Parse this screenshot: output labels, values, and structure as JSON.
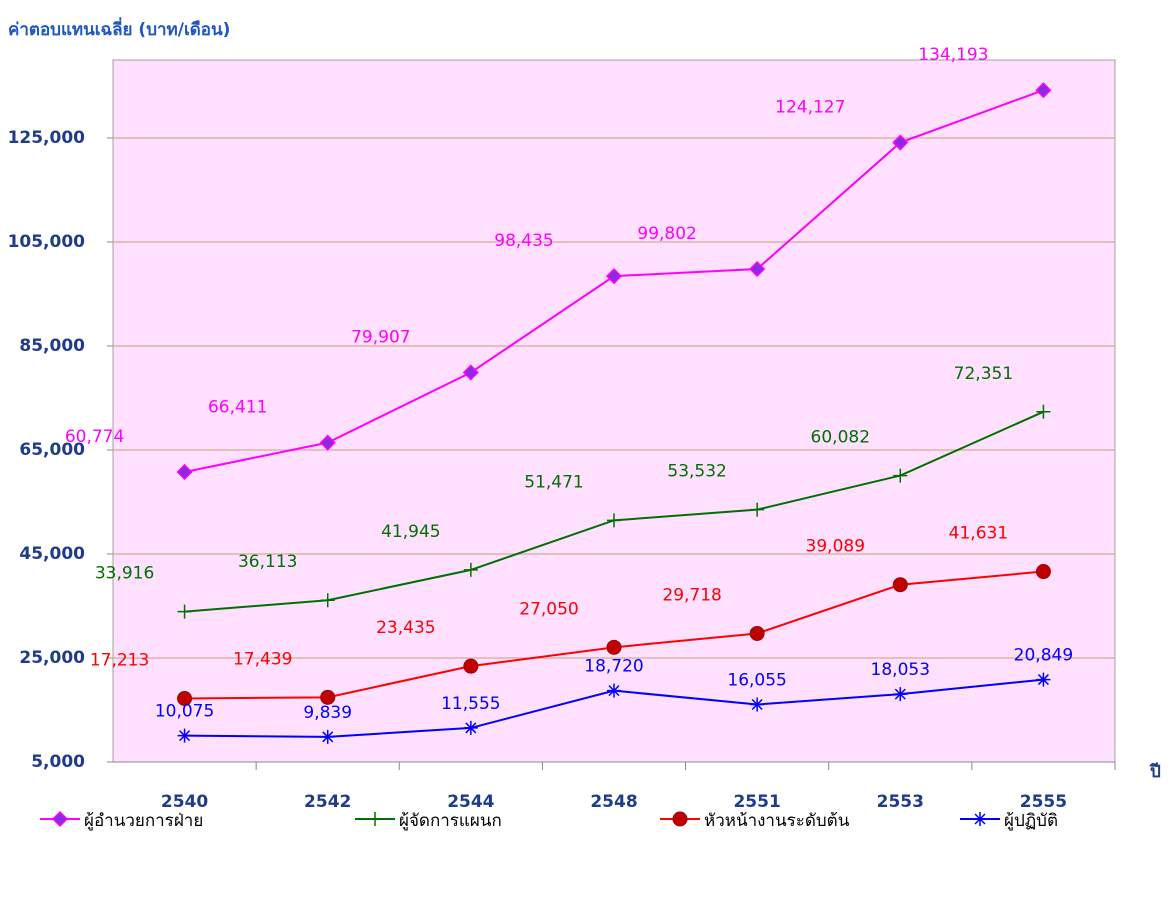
{
  "chart_data": {
    "type": "line",
    "title": "ค่าตอบแทนเฉลี่ย (บาท/เดือน)",
    "x_label": "ปี",
    "categories": [
      "2540",
      "2542",
      "2544",
      "2548",
      "2551",
      "2553",
      "2555"
    ],
    "ylim": [
      5000,
      140000
    ],
    "yticks": [
      {
        "value": 5000,
        "label": "5,000"
      },
      {
        "value": 25000,
        "label": "25,000"
      },
      {
        "value": 45000,
        "label": "45,000"
      },
      {
        "value": 65000,
        "label": "65,000"
      },
      {
        "value": 85000,
        "label": "85,000"
      },
      {
        "value": 105000,
        "label": "105,000"
      },
      {
        "value": 125000,
        "label": "125,000"
      }
    ],
    "grid": true,
    "legend": "bottom",
    "series": [
      {
        "name": "ผู้อำนวยการฝ่าย",
        "color": "#ff00ff",
        "marker": "diamond",
        "values": [
          60774,
          66411,
          79907,
          98435,
          99802,
          124127,
          134193
        ],
        "value_labels": [
          "60,774",
          "66,411",
          "79,907",
          "98,435",
          "99,802",
          "124,127",
          "134,193"
        ]
      },
      {
        "name": "ผู้จัดการแผนก",
        "color": "#007000",
        "marker": "plus",
        "values": [
          33916,
          36113,
          41945,
          51471,
          53532,
          60082,
          72351
        ],
        "value_labels": [
          "33,916",
          "36,113",
          "41,945",
          "51,471",
          "53,532",
          "60,082",
          "72,351"
        ]
      },
      {
        "name": "หัวหน้างานระดับต้น",
        "color": "#ff0000",
        "marker": "circle",
        "values": [
          17213,
          17439,
          23435,
          27050,
          29718,
          39089,
          41631
        ],
        "value_labels": [
          "17,213",
          "17,439",
          "23,435",
          "27,050",
          "29,718",
          "39,089",
          "41,631"
        ]
      },
      {
        "name": "ผู้ปฏิบัติ",
        "color": "#0000ff",
        "marker": "asterisk",
        "values": [
          10075,
          9839,
          11555,
          18720,
          16055,
          18053,
          20849
        ],
        "value_labels": [
          "10,075",
          "9,839",
          "11,555",
          "18,720",
          "16,055",
          "18,053",
          "20,849"
        ]
      }
    ]
  }
}
